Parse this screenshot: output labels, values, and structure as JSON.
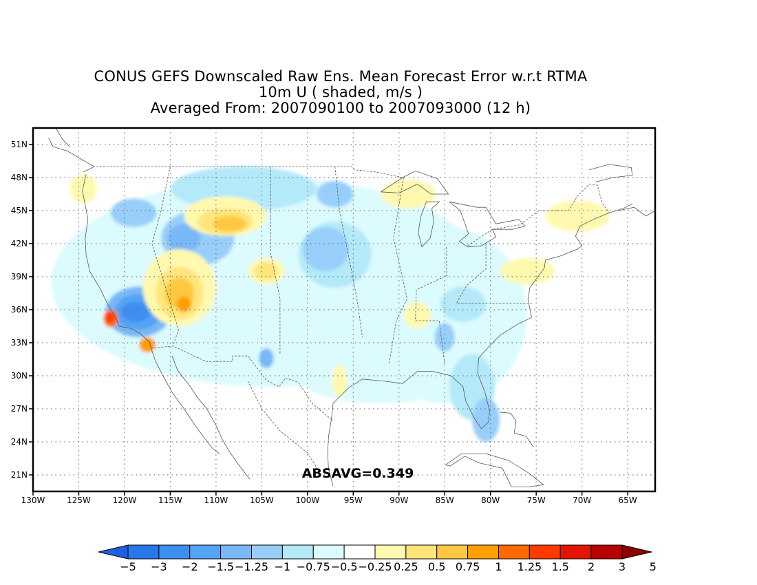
{
  "title": {
    "line1": "CONUS GEFS Downscaled Raw Ens. Mean Forecast Error w.r.t RTMA",
    "line2": "10m U ( shaded, m/s )",
    "line3": "Averaged From: 2007090100 to 2007093000 (12 h)"
  },
  "annotation": "ABSAVG=0.349",
  "map": {
    "lat_labels": [
      "51N",
      "48N",
      "45N",
      "42N",
      "39N",
      "36N",
      "33N",
      "30N",
      "27N",
      "24N",
      "21N"
    ],
    "lon_labels": [
      "130W",
      "125W",
      "120W",
      "115W",
      "110W",
      "105W",
      "100W",
      "95W",
      "90W",
      "85W",
      "80W",
      "75W",
      "70W",
      "65W"
    ],
    "lat_range": [
      19.5,
      52.5
    ],
    "lon_range": [
      -130,
      -62
    ],
    "grid": "dotted"
  },
  "colorbar": {
    "labels": [
      "-5",
      "-3",
      "-2",
      "-1.5",
      "-1.25",
      "-1",
      "-0.75",
      "-0.5",
      "-0.25",
      "0.25",
      "0.5",
      "0.75",
      "1",
      "1.25",
      "1.5",
      "2",
      "3",
      "5"
    ],
    "colors": [
      "#1e5fe0",
      "#2878ea",
      "#3c8ef0",
      "#55a3f5",
      "#78b8f8",
      "#98cffa",
      "#b4e9f9",
      "#dcfbff",
      "#ffffff",
      "#fff9b0",
      "#ffe579",
      "#ffc840",
      "#ffa000",
      "#ff6a00",
      "#ff3a00",
      "#e31500",
      "#b70000",
      "#8e0000"
    ]
  },
  "shading": [
    {
      "level": "-0.5",
      "color": "#dcfbff",
      "lat": 38.5,
      "lon": -104,
      "rlat": 9.5,
      "rlon": 24
    },
    {
      "level": "-0.5",
      "color": "#dcfbff",
      "lat": 35.5,
      "lon": -85,
      "rlat": 8,
      "rlon": 9
    },
    {
      "level": "-0.5",
      "color": "#dcfbff",
      "lat": 30,
      "lon": -92,
      "rlat": 2.5,
      "rlon": 9
    },
    {
      "level": "-0.75",
      "color": "#b4e9f9",
      "lat": 47,
      "lon": -107,
      "rlat": 2,
      "rlon": 8
    },
    {
      "level": "-0.75",
      "color": "#b4e9f9",
      "lat": 41,
      "lon": -97,
      "rlat": 3,
      "rlon": 4
    },
    {
      "level": "-0.75",
      "color": "#b4e9f9",
      "lat": 36.5,
      "lon": -83,
      "rlat": 1.6,
      "rlon": 2.5
    },
    {
      "level": "-0.75",
      "color": "#b4e9f9",
      "lat": 29,
      "lon": -82,
      "rlat": 3,
      "rlon": 2.5
    },
    {
      "level": "-1",
      "color": "#98cffa",
      "lat": 42.5,
      "lon": -112,
      "rlat": 2.5,
      "rlon": 4
    },
    {
      "level": "-1",
      "color": "#98cffa",
      "lat": 44.8,
      "lon": -119,
      "rlat": 1.3,
      "rlon": 2.5
    },
    {
      "level": "-1",
      "color": "#98cffa",
      "lat": 41.5,
      "lon": -98,
      "rlat": 2,
      "rlon": 2.5
    },
    {
      "level": "-1",
      "color": "#98cffa",
      "lat": 46.5,
      "lon": -97,
      "rlat": 1.2,
      "rlon": 2
    },
    {
      "level": "-1",
      "color": "#98cffa",
      "lat": 26,
      "lon": -80.5,
      "rlat": 2,
      "rlon": 1.5
    },
    {
      "level": "-1",
      "color": "#98cffa",
      "lat": 33.5,
      "lon": -85,
      "rlat": 1.3,
      "rlon": 1.1
    },
    {
      "level": "-1.25",
      "color": "#78b8f8",
      "lat": 35.8,
      "lon": -118.5,
      "rlat": 2.3,
      "rlon": 3.6
    },
    {
      "level": "-1.25",
      "color": "#78b8f8",
      "lat": 42.5,
      "lon": -113.5,
      "rlat": 1.3,
      "rlon": 1.8
    },
    {
      "level": "-1.25",
      "color": "#78b8f8",
      "lat": 31.6,
      "lon": -104.5,
      "rlat": 0.9,
      "rlon": 0.8
    },
    {
      "level": "-1.5",
      "color": "#55a3f5",
      "lat": 35.8,
      "lon": -118.5,
      "rlat": 1.6,
      "rlon": 2.6
    },
    {
      "level": "-2",
      "color": "#3c8ef0",
      "lat": 35.8,
      "lon": -118.8,
      "rlat": 0.9,
      "rlon": 1.6
    },
    {
      "level": "0.25",
      "color": "#fff9b0",
      "lat": 38,
      "lon": -114,
      "rlat": 3.5,
      "rlon": 4
    },
    {
      "level": "0.25",
      "color": "#fff9b0",
      "lat": 44.5,
      "lon": -109,
      "rlat": 1.8,
      "rlon": 4.5
    },
    {
      "level": "0.25",
      "color": "#fff9b0",
      "lat": 39.5,
      "lon": -104.5,
      "rlat": 1.2,
      "rlon": 2
    },
    {
      "level": "0.25",
      "color": "#fff9b0",
      "lat": 46.5,
      "lon": -89,
      "rlat": 1.3,
      "rlon": 3
    },
    {
      "level": "0.25",
      "color": "#fff9b0",
      "lat": 44.5,
      "lon": -70.5,
      "rlat": 1.4,
      "rlon": 3.5
    },
    {
      "level": "0.25",
      "color": "#fff9b0",
      "lat": 39.5,
      "lon": -76,
      "rlat": 1.2,
      "rlon": 3
    },
    {
      "level": "0.25",
      "color": "#fff9b0",
      "lat": 35.5,
      "lon": -88,
      "rlat": 1.2,
      "rlon": 1.5
    },
    {
      "level": "0.25",
      "color": "#fff9b0",
      "lat": 47,
      "lon": -124.5,
      "rlat": 1.3,
      "rlon": 1.5
    },
    {
      "level": "0.25",
      "color": "#fff9b0",
      "lat": 29.5,
      "lon": -96.5,
      "rlat": 1.5,
      "rlon": 0.8
    },
    {
      "level": "0.5",
      "color": "#ffe579",
      "lat": 37.5,
      "lon": -114,
      "rlat": 2.4,
      "rlon": 2.6
    },
    {
      "level": "0.5",
      "color": "#ffe579",
      "lat": 44,
      "lon": -109,
      "rlat": 1.2,
      "rlon": 3
    },
    {
      "level": "0.5",
      "color": "#ffe579",
      "lat": 39.5,
      "lon": -104.5,
      "rlat": 0.8,
      "rlon": 1.3
    },
    {
      "level": "0.75",
      "color": "#ffc840",
      "lat": 37.5,
      "lon": -114,
      "rlat": 1.4,
      "rlon": 1.6
    },
    {
      "level": "0.75",
      "color": "#ffc840",
      "lat": 43.8,
      "lon": -108.5,
      "rlat": 0.7,
      "rlon": 1.8
    },
    {
      "level": "1",
      "color": "#ffa000",
      "lat": 36.5,
      "lon": -113.5,
      "rlat": 0.7,
      "rlon": 0.8
    },
    {
      "level": "1",
      "color": "#ffa000",
      "lat": 32.8,
      "lon": -117.5,
      "rlat": 0.7,
      "rlon": 0.9
    },
    {
      "level": "1.25",
      "color": "#ff6a00",
      "lat": 35.2,
      "lon": -121.5,
      "rlat": 0.8,
      "rlon": 0.8
    },
    {
      "level": "1.5",
      "color": "#ff3a00",
      "lat": 35.3,
      "lon": -121.6,
      "rlat": 0.45,
      "rlon": 0.45
    }
  ],
  "coastlines": [
    [
      [
        -124.2,
        48.3
      ],
      [
        -124.6,
        46.8
      ],
      [
        -124.0,
        44.2
      ],
      [
        -124.3,
        42.5
      ],
      [
        -124.2,
        41.0
      ],
      [
        -123.8,
        39.5
      ],
      [
        -122.6,
        37.8
      ],
      [
        -121.9,
        36.6
      ],
      [
        -120.9,
        35.2
      ],
      [
        -120.6,
        34.5
      ],
      [
        -119.3,
        34.3
      ],
      [
        -118.4,
        33.9
      ],
      [
        -117.3,
        33.1
      ],
      [
        -117.1,
        32.5
      ],
      [
        -116.6,
        31.3
      ],
      [
        -115.8,
        30.0
      ],
      [
        -114.8,
        28.5
      ],
      [
        -113.5,
        27.0
      ],
      [
        -112.2,
        25.4
      ],
      [
        -110.5,
        23.5
      ],
      [
        -109.6,
        22.9
      ]
    ],
    [
      [
        -114.8,
        31.8
      ],
      [
        -114.2,
        30.5
      ],
      [
        -112.8,
        29.0
      ],
      [
        -112.0,
        28.0
      ],
      [
        -111.0,
        27.0
      ],
      [
        -110.0,
        25.5
      ],
      [
        -109.3,
        24.2
      ],
      [
        -108.6,
        23.2
      ],
      [
        -107.6,
        22.0
      ],
      [
        -106.3,
        20.6
      ]
    ],
    [
      [
        -97.2,
        27.5
      ],
      [
        -97.4,
        26.0
      ],
      [
        -97.7,
        24.5
      ],
      [
        -97.8,
        23.0
      ],
      [
        -97.7,
        21.5
      ],
      [
        -97.2,
        20.0
      ]
    ],
    [
      [
        -97.2,
        27.5
      ],
      [
        -95.5,
        28.9
      ],
      [
        -94.0,
        29.7
      ],
      [
        -91.5,
        29.5
      ],
      [
        -89.6,
        29.3
      ],
      [
        -88.0,
        30.4
      ],
      [
        -86.3,
        30.4
      ],
      [
        -84.3,
        30.0
      ],
      [
        -83.0,
        29.0
      ],
      [
        -82.7,
        27.7
      ],
      [
        -81.8,
        26.2
      ],
      [
        -81.0,
        25.2
      ],
      [
        -80.2,
        25.8
      ],
      [
        -80.1,
        26.8
      ],
      [
        -80.6,
        28.5
      ],
      [
        -81.4,
        30.2
      ],
      [
        -81.3,
        31.6
      ],
      [
        -80.0,
        32.8
      ],
      [
        -78.9,
        33.7
      ],
      [
        -77.0,
        34.7
      ],
      [
        -75.5,
        35.3
      ],
      [
        -75.9,
        36.9
      ],
      [
        -75.7,
        38.0
      ],
      [
        -75.0,
        38.8
      ],
      [
        -74.1,
        39.8
      ],
      [
        -74.0,
        40.5
      ],
      [
        -72.3,
        40.9
      ],
      [
        -70.5,
        41.5
      ],
      [
        -70.0,
        41.8
      ],
      [
        -70.7,
        42.7
      ],
      [
        -70.2,
        43.6
      ],
      [
        -68.5,
        44.3
      ],
      [
        -67.0,
        44.8
      ],
      [
        -65.5,
        45.2
      ],
      [
        -64.5,
        45.6
      ]
    ],
    [
      [
        -124.5,
        48.5
      ],
      [
        -123.3,
        49.0
      ],
      [
        -124.6,
        49.6
      ],
      [
        -126.2,
        50.4
      ],
      [
        -127.8,
        50.8
      ],
      [
        -128.3,
        51.6
      ]
    ],
    [
      [
        -127.5,
        52.5
      ],
      [
        -126.8,
        51.5
      ],
      [
        -126.0,
        50.8
      ]
    ],
    [
      [
        -92.0,
        46.7
      ],
      [
        -90.0,
        46.6
      ],
      [
        -88.0,
        47.4
      ],
      [
        -86.5,
        46.5
      ],
      [
        -84.6,
        46.5
      ],
      [
        -85.8,
        47.9
      ],
      [
        -88.2,
        48.6
      ],
      [
        -89.6,
        48.0
      ],
      [
        -92.0,
        46.7
      ]
    ],
    [
      [
        -87.5,
        41.7
      ],
      [
        -86.6,
        42.5
      ],
      [
        -86.2,
        44.0
      ],
      [
        -86.4,
        45.2
      ],
      [
        -85.6,
        45.8
      ],
      [
        -87.0,
        45.8
      ],
      [
        -87.6,
        44.5
      ],
      [
        -87.9,
        43.0
      ],
      [
        -87.5,
        41.7
      ]
    ],
    [
      [
        -84.5,
        45.8
      ],
      [
        -83.3,
        45.0
      ],
      [
        -82.7,
        43.6
      ],
      [
        -82.4,
        42.9
      ],
      [
        -83.4,
        42.2
      ],
      [
        -82.5,
        41.7
      ],
      [
        -81.0,
        41.8
      ],
      [
        -79.4,
        42.6
      ],
      [
        -79.8,
        43.3
      ],
      [
        -77.6,
        43.3
      ],
      [
        -76.2,
        43.6
      ],
      [
        -76.9,
        44.2
      ],
      [
        -79.4,
        43.8
      ],
      [
        -80.5,
        45.3
      ],
      [
        -81.5,
        45.3
      ],
      [
        -84.5,
        45.8
      ]
    ],
    [
      [
        -80.4,
        22.9
      ],
      [
        -78.0,
        22.3
      ],
      [
        -75.7,
        21.1
      ],
      [
        -74.2,
        20.1
      ],
      [
        -76.0,
        19.9
      ],
      [
        -77.7,
        19.9
      ],
      [
        -78.7,
        21.6
      ],
      [
        -81.3,
        22.1
      ],
      [
        -82.8,
        22.7
      ],
      [
        -84.4,
        21.8
      ],
      [
        -84.9,
        21.9
      ],
      [
        -83.2,
        22.9
      ],
      [
        -80.4,
        22.9
      ]
    ],
    [
      [
        -79.0,
        26.7
      ],
      [
        -77.8,
        26.6
      ],
      [
        -77.2,
        25.9
      ],
      [
        -77.4,
        24.8
      ],
      [
        -76.1,
        24.5
      ],
      [
        -75.3,
        23.5
      ]
    ],
    [
      [
        -66.0,
        45.0
      ],
      [
        -64.3,
        45.3
      ],
      [
        -63.0,
        44.5
      ],
      [
        -62.0,
        45.0
      ]
    ],
    [
      [
        -69.2,
        48.7
      ],
      [
        -67.0,
        49.2
      ],
      [
        -64.6,
        48.9
      ],
      [
        -64.5,
        48.2
      ],
      [
        -66.6,
        48.0
      ],
      [
        -68.5,
        47.6
      ]
    ]
  ],
  "borders": [
    [
      [
        -123.1,
        49.0
      ],
      [
        -95.2,
        49.0
      ],
      [
        -94.8,
        48.7
      ],
      [
        -92.5,
        48.5
      ],
      [
        -89.6,
        48.0
      ]
    ],
    [
      [
        -82.5,
        41.8
      ],
      [
        -79.8,
        43.3
      ],
      [
        -76.8,
        43.7
      ],
      [
        -74.7,
        45.0
      ],
      [
        -71.5,
        45.0
      ],
      [
        -70.5,
        46.3
      ],
      [
        -69.2,
        47.4
      ],
      [
        -68.3,
        47.3
      ],
      [
        -67.8,
        45.7
      ],
      [
        -67.0,
        44.8
      ]
    ],
    [
      [
        -117.1,
        32.5
      ],
      [
        -114.7,
        32.7
      ],
      [
        -111.1,
        31.3
      ],
      [
        -108.2,
        31.3
      ],
      [
        -108.2,
        31.8
      ],
      [
        -106.5,
        31.8
      ],
      [
        -104.5,
        29.6
      ],
      [
        -103.1,
        29.0
      ],
      [
        -102.4,
        29.8
      ],
      [
        -101.0,
        29.4
      ],
      [
        -99.5,
        27.5
      ],
      [
        -97.2,
        25.9
      ]
    ],
    [
      [
        -115.0,
        49.0
      ],
      [
        -116.0,
        45.0
      ],
      [
        -117.0,
        42.0
      ],
      [
        -114.1,
        34.2
      ],
      [
        -114.7,
        32.7
      ]
    ],
    [
      [
        -104.0,
        49.0
      ],
      [
        -104.0,
        45.0
      ],
      [
        -104.0,
        41.0
      ],
      [
        -103.0,
        37.0
      ],
      [
        -103.0,
        32.0
      ]
    ],
    [
      [
        -97.0,
        49.0
      ],
      [
        -96.5,
        45.0
      ],
      [
        -95.3,
        40.0
      ],
      [
        -94.6,
        37.0
      ],
      [
        -94.0,
        33.5
      ]
    ],
    [
      [
        -89.5,
        48.0
      ],
      [
        -90.6,
        42.5
      ],
      [
        -89.1,
        37.0
      ],
      [
        -90.3,
        35.0
      ],
      [
        -91.1,
        31.0
      ]
    ],
    [
      [
        -84.8,
        41.7
      ],
      [
        -84.8,
        39.1
      ],
      [
        -88.1,
        37.8
      ],
      [
        -88.2,
        35.0
      ],
      [
        -85.6,
        35.0
      ],
      [
        -85.0,
        31.0
      ]
    ],
    [
      [
        -80.5,
        42.0
      ],
      [
        -80.5,
        39.7
      ],
      [
        -82.6,
        38.2
      ],
      [
        -83.7,
        36.6
      ],
      [
        -81.7,
        36.6
      ],
      [
        -75.4,
        36.6
      ]
    ],
    [
      [
        -100.0,
        23.0
      ],
      [
        -103.0,
        25.0
      ],
      [
        -105.0,
        27.0
      ],
      [
        -106.5,
        29.5
      ]
    ],
    [
      [
        -100.0,
        23.0
      ],
      [
        -98.5,
        21.0
      ]
    ]
  ]
}
